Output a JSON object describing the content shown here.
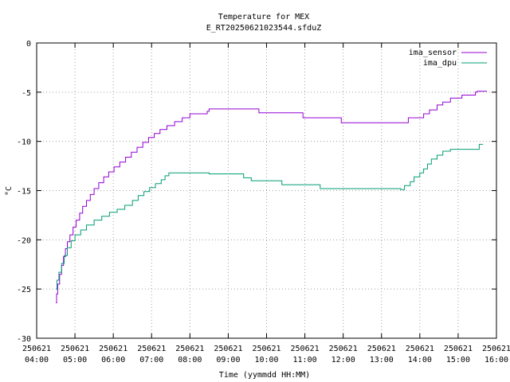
{
  "chart_data": {
    "type": "line",
    "title": "Temperature for MEX",
    "subtitle": "E_RT20250621023544.sfduZ",
    "xlabel": "Time (yymmdd HH:MM)",
    "ylabel": "°C",
    "ylim": [
      -30,
      0
    ],
    "yticks": [
      0,
      -5,
      -10,
      -15,
      -20,
      -25,
      -30
    ],
    "xlim_hours": [
      4,
      16
    ],
    "xticks": [
      {
        "date": "250621",
        "time": "04:00"
      },
      {
        "date": "250621",
        "time": "05:00"
      },
      {
        "date": "250621",
        "time": "06:00"
      },
      {
        "date": "250621",
        "time": "07:00"
      },
      {
        "date": "250621",
        "time": "08:00"
      },
      {
        "date": "250621",
        "time": "09:00"
      },
      {
        "date": "250621",
        "time": "10:00"
      },
      {
        "date": "250621",
        "time": "11:00"
      },
      {
        "date": "250621",
        "time": "12:00"
      },
      {
        "date": "250621",
        "time": "13:00"
      },
      {
        "date": "250621",
        "time": "14:00"
      },
      {
        "date": "250621",
        "time": "15:00"
      },
      {
        "date": "250621",
        "time": "16:00"
      }
    ],
    "grid": true,
    "legend_position": "top-right",
    "series": [
      {
        "name": "ima_sensor",
        "color": "#9400d3",
        "step": true,
        "points": [
          [
            4.5,
            -26.4
          ],
          [
            4.52,
            -25.5
          ],
          [
            4.55,
            -24.5
          ],
          [
            4.6,
            -23.5
          ],
          [
            4.65,
            -22.6
          ],
          [
            4.7,
            -21.7
          ],
          [
            4.75,
            -20.9
          ],
          [
            4.8,
            -20.2
          ],
          [
            4.87,
            -19.5
          ],
          [
            4.95,
            -18.7
          ],
          [
            5.03,
            -18.0
          ],
          [
            5.12,
            -17.3
          ],
          [
            5.2,
            -16.6
          ],
          [
            5.3,
            -16.0
          ],
          [
            5.4,
            -15.4
          ],
          [
            5.5,
            -14.8
          ],
          [
            5.62,
            -14.2
          ],
          [
            5.75,
            -13.6
          ],
          [
            5.88,
            -13.1
          ],
          [
            6.02,
            -12.6
          ],
          [
            6.17,
            -12.1
          ],
          [
            6.32,
            -11.6
          ],
          [
            6.47,
            -11.1
          ],
          [
            6.62,
            -10.6
          ],
          [
            6.77,
            -10.1
          ],
          [
            6.92,
            -9.6
          ],
          [
            7.07,
            -9.2
          ],
          [
            7.22,
            -8.8
          ],
          [
            7.4,
            -8.4
          ],
          [
            7.6,
            -8.0
          ],
          [
            7.8,
            -7.6
          ],
          [
            8.0,
            -7.2
          ],
          [
            8.45,
            -6.95
          ],
          [
            8.5,
            -6.7
          ],
          [
            9.8,
            -7.1
          ],
          [
            10.95,
            -7.6
          ],
          [
            11.95,
            -8.1
          ],
          [
            13.7,
            -7.6
          ],
          [
            14.1,
            -7.2
          ],
          [
            14.25,
            -6.8
          ],
          [
            14.45,
            -6.3
          ],
          [
            14.6,
            -6.0
          ],
          [
            14.8,
            -5.6
          ],
          [
            15.1,
            -5.3
          ],
          [
            15.45,
            -5.0
          ],
          [
            15.5,
            -4.9
          ],
          [
            15.75,
            -4.9
          ]
        ]
      },
      {
        "name": "ima_dpu",
        "color": "#009e73",
        "step": true,
        "points": [
          [
            4.5,
            -25.0
          ],
          [
            4.53,
            -24.1
          ],
          [
            4.58,
            -23.3
          ],
          [
            4.65,
            -22.4
          ],
          [
            4.72,
            -21.6
          ],
          [
            4.8,
            -20.8
          ],
          [
            4.9,
            -20.1
          ],
          [
            5.0,
            -19.5
          ],
          [
            5.15,
            -19.0
          ],
          [
            5.3,
            -18.5
          ],
          [
            5.5,
            -18.0
          ],
          [
            5.7,
            -17.6
          ],
          [
            5.9,
            -17.2
          ],
          [
            6.1,
            -16.9
          ],
          [
            6.3,
            -16.5
          ],
          [
            6.5,
            -16.0
          ],
          [
            6.65,
            -15.5
          ],
          [
            6.8,
            -15.1
          ],
          [
            6.95,
            -14.7
          ],
          [
            7.1,
            -14.3
          ],
          [
            7.25,
            -13.9
          ],
          [
            7.35,
            -13.5
          ],
          [
            7.45,
            -13.2
          ],
          [
            8.5,
            -13.3
          ],
          [
            9.4,
            -13.7
          ],
          [
            9.6,
            -14.0
          ],
          [
            10.4,
            -14.4
          ],
          [
            11.4,
            -14.8
          ],
          [
            13.5,
            -14.9
          ],
          [
            13.6,
            -14.5
          ],
          [
            13.75,
            -14.1
          ],
          [
            13.85,
            -13.6
          ],
          [
            14.0,
            -13.2
          ],
          [
            14.1,
            -12.8
          ],
          [
            14.2,
            -12.3
          ],
          [
            14.3,
            -11.8
          ],
          [
            14.45,
            -11.4
          ],
          [
            14.6,
            -11.0
          ],
          [
            14.8,
            -10.8
          ],
          [
            15.4,
            -10.8
          ],
          [
            15.55,
            -10.3
          ],
          [
            15.65,
            -10.3
          ]
        ]
      }
    ]
  }
}
